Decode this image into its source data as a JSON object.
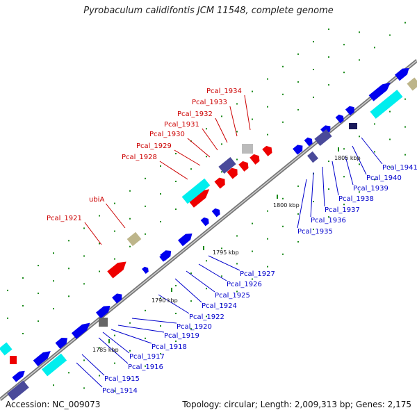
{
  "title": "Pyrobaculum calidifontis JCM 11548, complete genome",
  "footer": {
    "accession": "Accession: NC_009073",
    "summary": "Topology: circular; Length: 2,009,313 bp; Genes: 2,175"
  },
  "colors": {
    "backbone": "#9a9a9a",
    "forward_gene": "#0000ee",
    "highlight_gene": "#ee0000",
    "label_red": "#cc0000",
    "label_blue": "#0000cc",
    "tick_green": "#1a8a1a",
    "cyan": "#00eeee",
    "slate": "#4a4a9a",
    "khaki": "#bdb58a"
  },
  "kbp_ticks": [
    "1785 kbp",
    "1790 kbp",
    "1795 kbp",
    "1800 kbp",
    "1805 kbp"
  ],
  "labels_red": [
    "Pcal_1921",
    "ubiA",
    "Pcal_1928",
    "Pcal_1929",
    "Pcal_1930",
    "Pcal_1931",
    "Pcal_1932",
    "Pcal_1933",
    "Pcal_1934"
  ],
  "labels_blue": [
    "Pcal_1914",
    "Pcal_1915",
    "Pcal_1916",
    "Pcal_1917",
    "Pcal_1918",
    "Pcal_1919",
    "Pcal_1920",
    "Pcal_1922",
    "Pcal_1924",
    "Pcal_1925",
    "Pcal_1926",
    "Pcal_1927",
    "Pcal_1935",
    "Pcal_1936",
    "Pcal_1937",
    "Pcal_1938",
    "Pcal_1939",
    "Pcal_1940",
    "Pcal_1941"
  ]
}
